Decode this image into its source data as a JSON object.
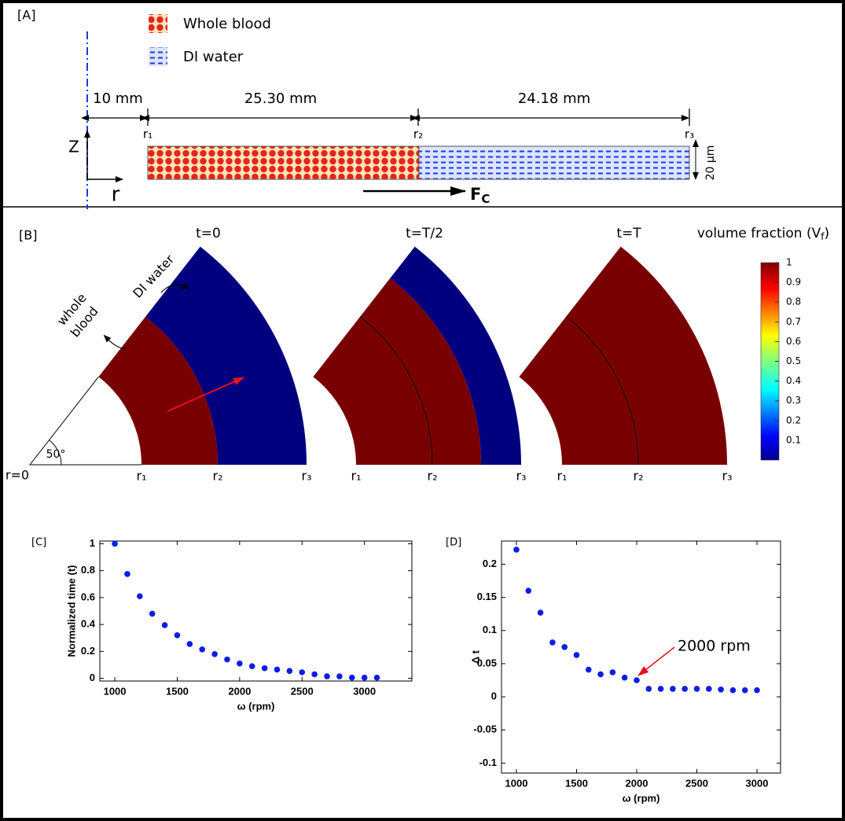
{
  "panel_a": {
    "label": "[A]",
    "legend": [
      "Whole blood",
      "DI water"
    ],
    "dimensions": [
      "10 mm",
      "25.30 mm",
      "24.18 mm"
    ],
    "radii": [
      "r₁",
      "r₂",
      "r₃"
    ],
    "z_axis": "Z",
    "r_axis": "r",
    "force": {
      "base": "F",
      "sub": "C"
    },
    "height": "20 µm"
  },
  "panel_b": {
    "label": "[B]",
    "times": [
      "t=0",
      "t=T/2",
      "t=T"
    ],
    "colorbar_title": {
      "text": "volume fraction (V",
      "sub": "f",
      "close": ")"
    },
    "colorbar": {
      "lim": [
        0,
        1
      ],
      "ticks": [
        0.1,
        0.2,
        0.3,
        0.4,
        0.5,
        0.6,
        0.7,
        0.8,
        0.9,
        1
      ]
    },
    "labels": {
      "di_water": "DI water",
      "whole_blood": [
        "whole",
        "blood"
      ],
      "angle": "50°",
      "origin": "r=0"
    }
  },
  "chart_data": [
    {
      "type": "scatter",
      "label": "[C]",
      "xlabel": "ω (rpm)",
      "ylabel": "Normalized time (t)",
      "x": [
        1000,
        1100,
        1200,
        1300,
        1400,
        1500,
        1600,
        1700,
        1800,
        1900,
        2000,
        2100,
        2200,
        2300,
        2400,
        2500,
        2600,
        2700,
        2800,
        2900,
        3000,
        3100
      ],
      "values": [
        1.0,
        0.775,
        0.61,
        0.48,
        0.395,
        0.32,
        0.255,
        0.215,
        0.18,
        0.14,
        0.11,
        0.09,
        0.075,
        0.065,
        0.055,
        0.045,
        0.03,
        0.015,
        0.015,
        0.005,
        0.005,
        0.005
      ],
      "color": "#0a1ee6",
      "xlim": [
        880,
        3380
      ],
      "ylim": [
        -0.02,
        1.02
      ],
      "xticks": [
        1000,
        1500,
        2000,
        2500,
        3000
      ],
      "yticks": [
        0,
        0.2,
        0.4,
        0.6,
        0.8,
        1
      ]
    },
    {
      "type": "scatter",
      "label": "[D]",
      "xlabel": "ω (rpm)",
      "ylabel": "Δ t",
      "annotation": "2000 rpm",
      "x": [
        1000,
        1100,
        1200,
        1300,
        1400,
        1500,
        1600,
        1700,
        1800,
        1900,
        2000,
        2100,
        2200,
        2300,
        2400,
        2500,
        2600,
        2700,
        2800,
        2900,
        3000
      ],
      "values": [
        0.222,
        0.16,
        0.127,
        0.082,
        0.075,
        0.063,
        0.041,
        0.034,
        0.037,
        0.029,
        0.025,
        0.012,
        0.012,
        0.012,
        0.012,
        0.012,
        0.012,
        0.011,
        0.01,
        0.01,
        0.01
      ],
      "color": "#0a1ee6",
      "xlim": [
        876,
        3196
      ],
      "ylim": [
        -0.115,
        0.235
      ],
      "xticks": [
        1000,
        1500,
        2000,
        2500,
        3000
      ],
      "yticks": [
        -0.1,
        -0.05,
        0,
        0.05,
        0.1,
        0.15,
        0.2
      ]
    }
  ]
}
